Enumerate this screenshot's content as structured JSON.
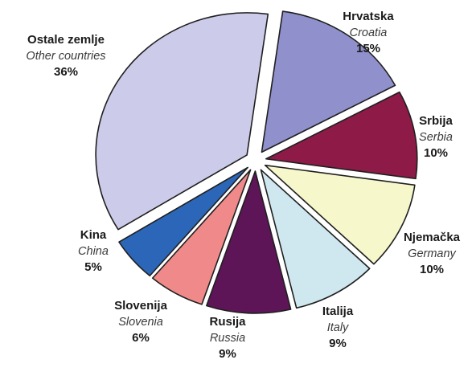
{
  "chart_data": {
    "type": "pie",
    "title": "",
    "legend": "none",
    "slices": [
      {
        "name": "Hrvatska",
        "name_en": "Croatia",
        "value": 15,
        "label": "15%",
        "color": "#9090cc"
      },
      {
        "name": "Srbija",
        "name_en": "Serbia",
        "value": 10,
        "label": "10%",
        "color": "#8e1a47"
      },
      {
        "name": "Njemačka",
        "name_en": "Germany",
        "value": 10,
        "label": "10%",
        "color": "#f7f7cc"
      },
      {
        "name": "Italija",
        "name_en": "Italy",
        "value": 9,
        "label": "9%",
        "color": "#cfe7ef"
      },
      {
        "name": "Rusija",
        "name_en": "Russia",
        "value": 9,
        "label": "9%",
        "color": "#5d1558"
      },
      {
        "name": "Slovenija",
        "name_en": "Slovenia",
        "value": 6,
        "label": "6%",
        "color": "#f08a8a"
      },
      {
        "name": "Kina",
        "name_en": "China",
        "value": 5,
        "label": "5%",
        "color": "#2c66b8"
      },
      {
        "name": "Ostale zemlje",
        "name_en": "Other countries",
        "value": 36,
        "label": "36%",
        "color": "#cccbea"
      }
    ]
  }
}
